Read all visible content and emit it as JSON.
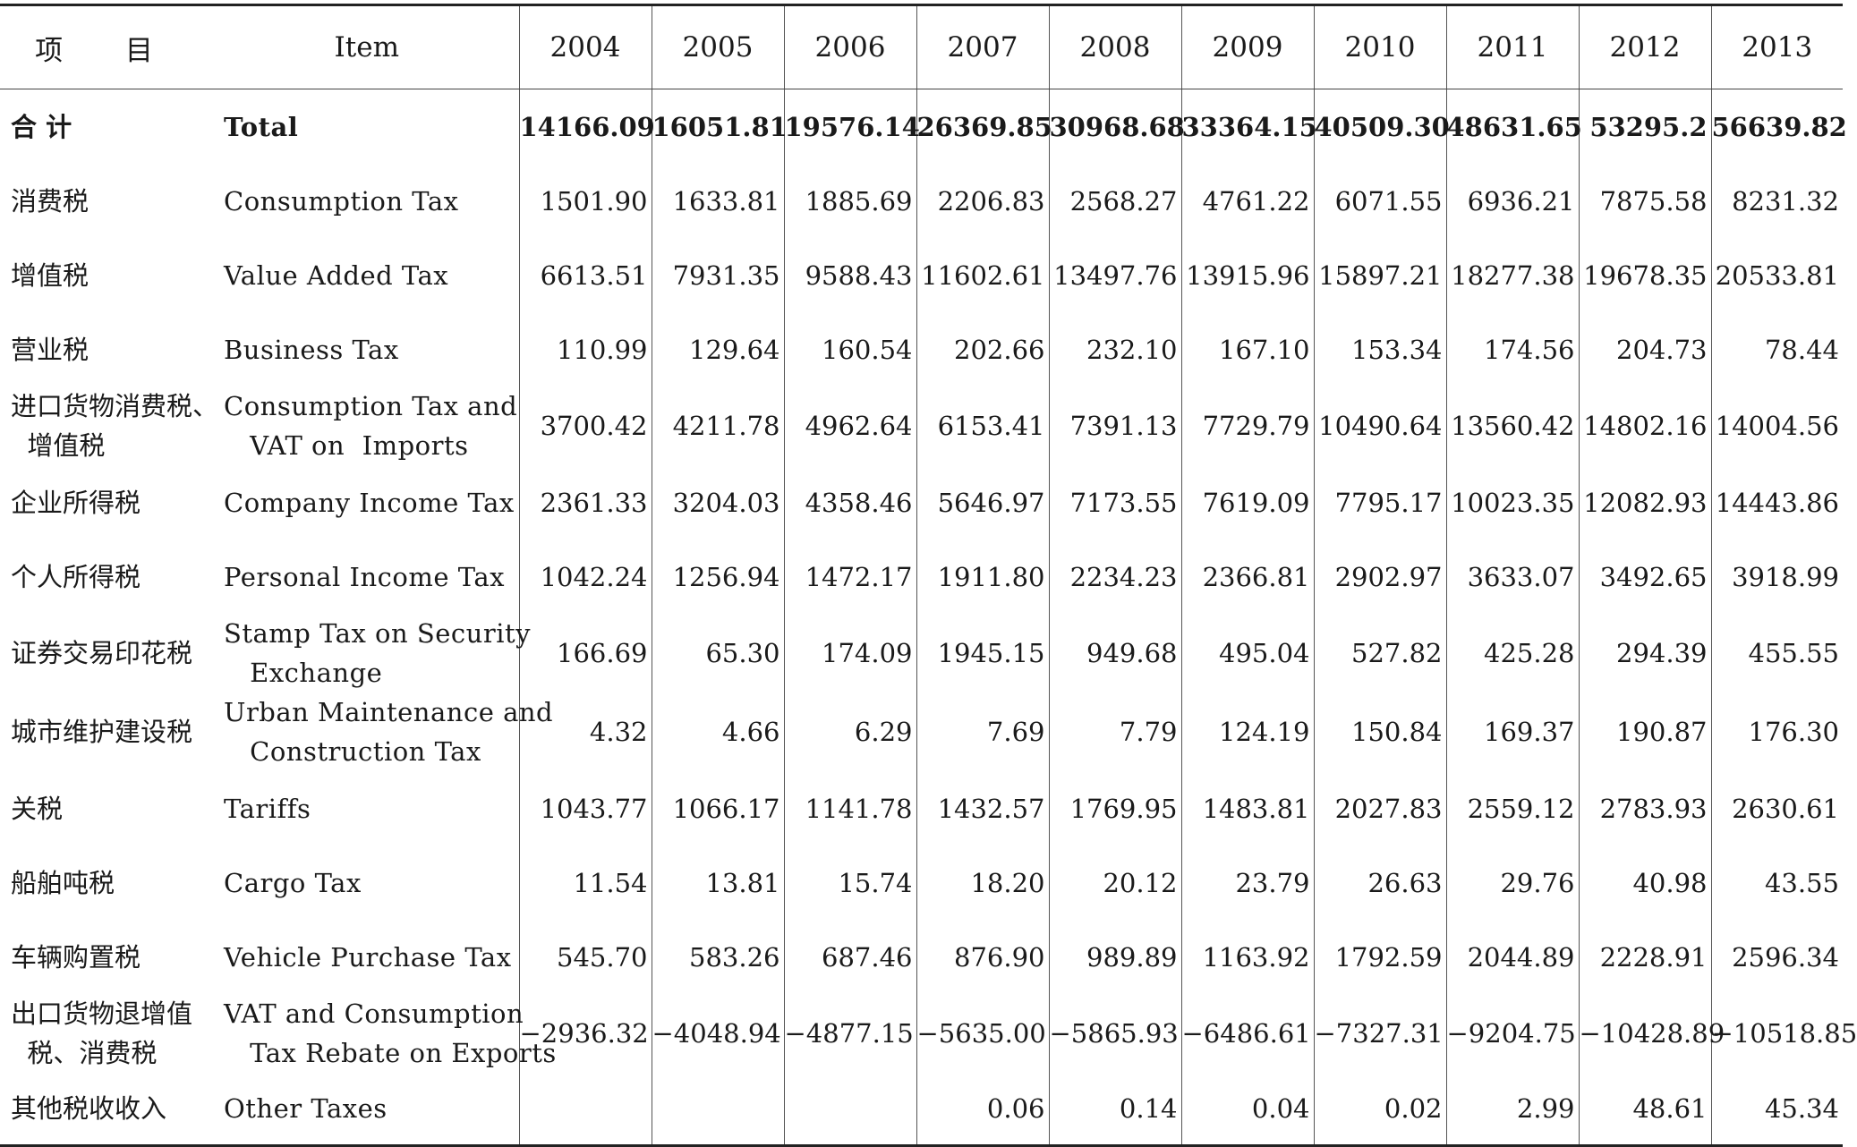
{
  "header": {
    "item_zh": "项 目",
    "item_en": "Item",
    "years": [
      "2004",
      "2005",
      "2006",
      "2007",
      "2008",
      "2009",
      "2010",
      "2011",
      "2012",
      "2013"
    ]
  },
  "rows": [
    {
      "zh": "合 计",
      "en": "Total",
      "bold": true,
      "values": [
        "14166.09",
        "16051.81",
        "19576.14",
        "26369.85",
        "30968.68",
        "33364.15",
        "40509.30",
        "48631.65",
        "53295.2",
        "56639.82"
      ]
    },
    {
      "zh": "消费税",
      "en": "Consumption Tax",
      "values": [
        "1501.90",
        "1633.81",
        "1885.69",
        "2206.83",
        "2568.27",
        "4761.22",
        "6071.55",
        "6936.21",
        "7875.58",
        "8231.32"
      ]
    },
    {
      "zh": "增值税",
      "en": "Value Added Tax",
      "values": [
        "6613.51",
        "7931.35",
        "9588.43",
        "11602.61",
        "13497.76",
        "13915.96",
        "15897.21",
        "18277.38",
        "19678.35",
        "20533.81"
      ]
    },
    {
      "zh": "营业税",
      "en": "Business Tax",
      "values": [
        "110.99",
        "129.64",
        "160.54",
        "202.66",
        "232.10",
        "167.10",
        "153.34",
        "174.56",
        "204.73",
        "78.44"
      ]
    },
    {
      "zh": "进口货物消费税、\n  增值税",
      "en": "Consumption Tax and\n   VAT on  Imports",
      "values": [
        "3700.42",
        "4211.78",
        "4962.64",
        "6153.41",
        "7391.13",
        "7729.79",
        "10490.64",
        "13560.42",
        "14802.16",
        "14004.56"
      ]
    },
    {
      "zh": "企业所得税",
      "en": "Company Income Tax",
      "values": [
        "2361.33",
        "3204.03",
        "4358.46",
        "5646.97",
        "7173.55",
        "7619.09",
        "7795.17",
        "10023.35",
        "12082.93",
        "14443.86"
      ]
    },
    {
      "zh": "个人所得税",
      "en": "Personal Income Tax",
      "values": [
        "1042.24",
        "1256.94",
        "1472.17",
        "1911.80",
        "2234.23",
        "2366.81",
        "2902.97",
        "3633.07",
        "3492.65",
        "3918.99"
      ]
    },
    {
      "zh": "证券交易印花税",
      "en": "Stamp Tax on Security\n   Exchange",
      "values": [
        "166.69",
        "65.30",
        "174.09",
        "1945.15",
        "949.68",
        "495.04",
        "527.82",
        "425.28",
        "294.39",
        "455.55"
      ]
    },
    {
      "zh": "城市维护建设税",
      "en": "Urban Maintenance and\n   Construction Tax",
      "values": [
        "4.32",
        "4.66",
        "6.29",
        "7.69",
        "7.79",
        "124.19",
        "150.84",
        "169.37",
        "190.87",
        "176.30"
      ]
    },
    {
      "zh": "关税",
      "en": "Tariffs",
      "values": [
        "1043.77",
        "1066.17",
        "1141.78",
        "1432.57",
        "1769.95",
        "1483.81",
        "2027.83",
        "2559.12",
        "2783.93",
        "2630.61"
      ]
    },
    {
      "zh": "船舶吨税",
      "en": "Cargo Tax",
      "values": [
        "11.54",
        "13.81",
        "15.74",
        "18.20",
        "20.12",
        "23.79",
        "26.63",
        "29.76",
        "40.98",
        "43.55"
      ]
    },
    {
      "zh": "车辆购置税",
      "en": "Vehicle Purchase Tax",
      "values": [
        "545.70",
        "583.26",
        "687.46",
        "876.90",
        "989.89",
        "1163.92",
        "1792.59",
        "2044.89",
        "2228.91",
        "2596.34"
      ]
    },
    {
      "zh": "出口货物退增值\n  税、消费税",
      "en": "VAT and Consumption\n   Tax Rebate on Exports",
      "values": [
        "−2936.32",
        "−4048.94",
        "−4877.15",
        "−5635.00",
        "−5865.93",
        "−6486.61",
        "−7327.31",
        "−9204.75",
        "−10428.89",
        "−10518.85"
      ]
    },
    {
      "zh": "其他税收收入",
      "en": "Other Taxes",
      "values": [
        "",
        "",
        "",
        "0.06",
        "0.14",
        "0.04",
        "0.02",
        "2.99",
        "48.61",
        "45.34"
      ]
    }
  ]
}
